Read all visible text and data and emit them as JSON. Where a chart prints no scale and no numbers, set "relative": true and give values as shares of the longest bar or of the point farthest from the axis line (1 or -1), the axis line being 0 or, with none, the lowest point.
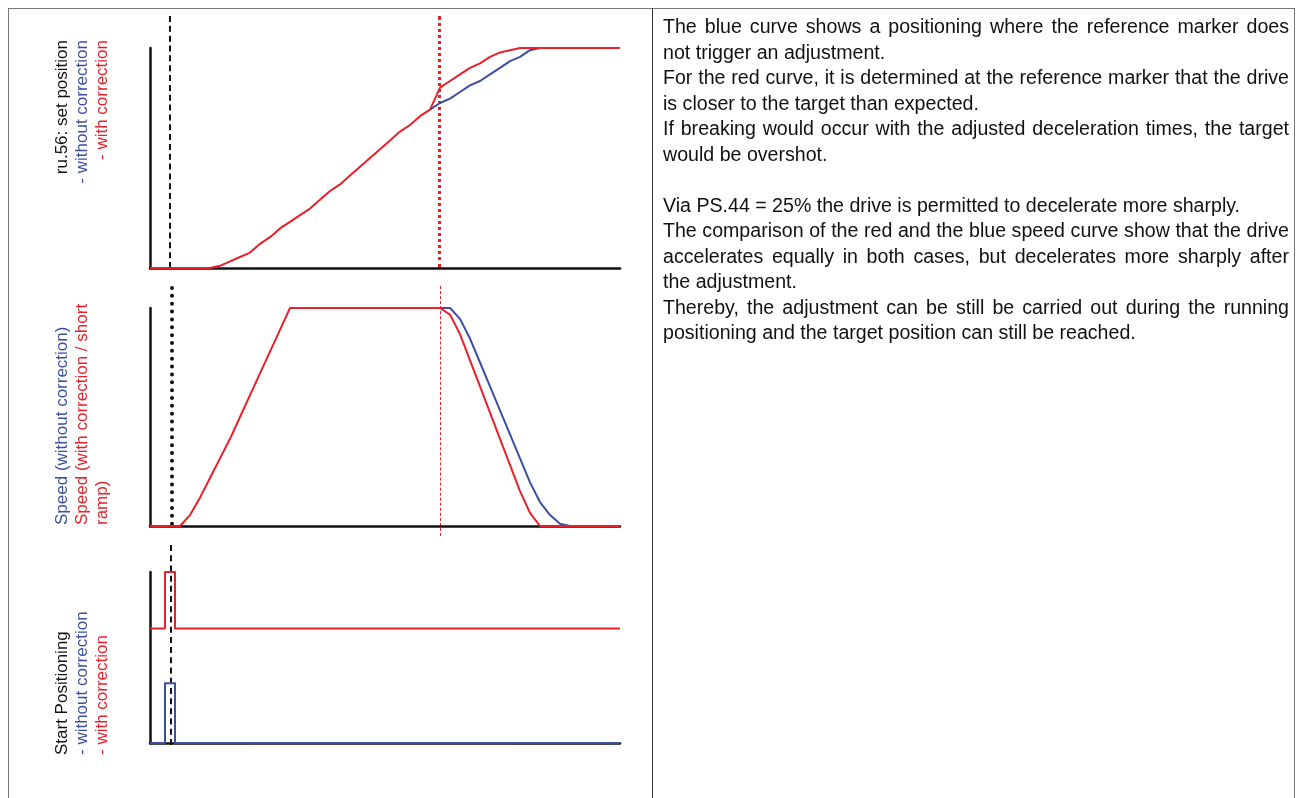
{
  "chart_data": [
    {
      "type": "line",
      "relative": true,
      "ylabel": "ru.56: set position",
      "categories": [
        null,
        null,
        null,
        null,
        null,
        null,
        null,
        null,
        null,
        null,
        null,
        null,
        null,
        null,
        null,
        null,
        null,
        null,
        null,
        null,
        null,
        null,
        null,
        null,
        null,
        null,
        null,
        null,
        null,
        null,
        null,
        null,
        null,
        null,
        null,
        null,
        null,
        null,
        null,
        null,
        null,
        null,
        null,
        null,
        null,
        null,
        null,
        null
      ],
      "series": [
        {
          "name": "- without correction",
          "color": "#3a4fa0",
          "values": [
            null,
            null,
            null,
            null,
            null,
            null,
            null,
            null,
            null,
            null,
            null,
            null,
            null,
            null,
            null,
            null,
            null,
            null,
            null,
            null,
            null,
            null,
            null,
            null,
            null,
            null,
            null,
            null,
            0.72,
            0.75,
            0.77,
            0.8,
            0.83,
            0.85,
            0.88,
            0.91,
            0.94,
            0.96,
            0.99,
            1,
            null,
            null,
            null,
            null,
            null,
            null,
            null,
            null
          ]
        },
        {
          "name": "- with correction",
          "color": "#e8202a",
          "values": [
            0,
            0,
            0,
            0,
            0,
            0,
            0,
            0.01,
            0.03,
            0.05,
            0.07,
            0.11,
            0.14,
            0.18,
            0.21,
            0.24,
            0.27,
            0.31,
            0.35,
            0.38,
            0.42,
            0.46,
            0.5,
            0.54,
            0.58,
            0.62,
            0.65,
            0.69,
            0.72,
            0.82,
            0.85,
            0.88,
            0.91,
            0.93,
            0.96,
            0.98,
            0.99,
            1,
            1,
            1,
            1,
            1,
            1,
            1,
            1,
            1,
            1,
            1
          ]
        }
      ]
    },
    {
      "type": "line",
      "relative": true,
      "categories": [
        null,
        null,
        null,
        null,
        null,
        null,
        null,
        null,
        null,
        null,
        null,
        null,
        null,
        null,
        null,
        null,
        null,
        null,
        null,
        null,
        null,
        null,
        null,
        null,
        null,
        null,
        null,
        null,
        null,
        null,
        null,
        null,
        null,
        null,
        null,
        null,
        null,
        null,
        null,
        null,
        null,
        null,
        null,
        null,
        null,
        null,
        null,
        null
      ],
      "series": [
        {
          "name": "Speed (without correction)",
          "color": "#3a4fa0",
          "values": [
            null,
            null,
            null,
            null,
            null,
            null,
            null,
            null,
            null,
            null,
            null,
            null,
            null,
            null,
            null,
            null,
            null,
            null,
            null,
            null,
            null,
            null,
            null,
            null,
            null,
            null,
            null,
            null,
            null,
            1,
            1,
            0.95,
            0.86,
            0.75,
            0.64,
            0.53,
            0.42,
            0.31,
            0.2,
            0.11,
            0.05,
            0.01,
            0,
            null,
            null,
            null,
            null,
            null
          ]
        },
        {
          "name": "Speed (with correction / short ramp)",
          "color": "#e8202a",
          "values": [
            0,
            0,
            0,
            0,
            0.05,
            0.13,
            0.22,
            0.31,
            0.4,
            0.5,
            0.6,
            0.7,
            0.8,
            0.9,
            1,
            1,
            1,
            1,
            1,
            1,
            1,
            1,
            1,
            1,
            1,
            1,
            1,
            1,
            1,
            1,
            0.97,
            0.88,
            0.76,
            0.64,
            0.52,
            0.4,
            0.28,
            0.16,
            0.06,
            0,
            0,
            0,
            0,
            0,
            0,
            0,
            0,
            0
          ]
        }
      ]
    },
    {
      "type": "step",
      "relative": true,
      "ylabel": "Start Positioning",
      "categories": [
        null,
        null,
        null,
        null,
        null,
        null,
        null,
        null,
        null,
        null,
        null,
        null,
        null,
        null,
        null,
        null,
        null,
        null,
        null,
        null,
        null,
        null,
        null,
        null,
        null,
        null,
        null,
        null,
        null,
        null,
        null,
        null,
        null,
        null,
        null,
        null,
        null,
        null,
        null,
        null,
        null,
        null,
        null,
        null,
        null,
        null,
        null,
        null
      ],
      "series": [
        {
          "name": "- without correction",
          "color": "#3a4fa0",
          "values": [
            0,
            0,
            0.35,
            0,
            0,
            0,
            0,
            0,
            0,
            0,
            0,
            0,
            0,
            0,
            0,
            0,
            0,
            0,
            0,
            0,
            0,
            0,
            0,
            0,
            0,
            0,
            0,
            0,
            0,
            0,
            0,
            0,
            0,
            0,
            0,
            0,
            0,
            0,
            0,
            0,
            0,
            0,
            0,
            0,
            0,
            0,
            0,
            0
          ]
        },
        {
          "name": "- with correction",
          "color": "#e8202a",
          "values": [
            0.67,
            0.67,
            1,
            0.67,
            0.67,
            0.67,
            0.67,
            0.67,
            0.67,
            0.67,
            0.67,
            0.67,
            0.67,
            0.67,
            0.67,
            0.67,
            0.67,
            0.67,
            0.67,
            0.67,
            0.67,
            0.67,
            0.67,
            0.67,
            0.67,
            0.67,
            0.67,
            0.67,
            0.67,
            0.67,
            0.67,
            0.67,
            0.67,
            0.67,
            0.67,
            0.67,
            0.67,
            0.67,
            0.67,
            0.67,
            0.67,
            0.67,
            0.67,
            0.67,
            0.67,
            0.67,
            0.67,
            0.67
          ]
        }
      ]
    },
    {
      "type": "other",
      "annotations": [
        "The blue curve shows a positioning where the reference marker does not trigger an adjustment.",
        "For the red curve, it is determined at the reference marker that the drive is closer to the target than expected.",
        "If breaking would occur with the adjusted deceleration times, the target would be overshot.",
        "Via PS.44 = 25% the drive is permitted to decelerate more sharply.",
        "The comparison of the red and the blue speed curve show that the drive accelerates equally in both cases, but decelerates more sharply after the adjustment.",
        "Thereby, the adjustment can be still be carried out during the running positioning and the target position can still be reached."
      ]
    }
  ]
}
